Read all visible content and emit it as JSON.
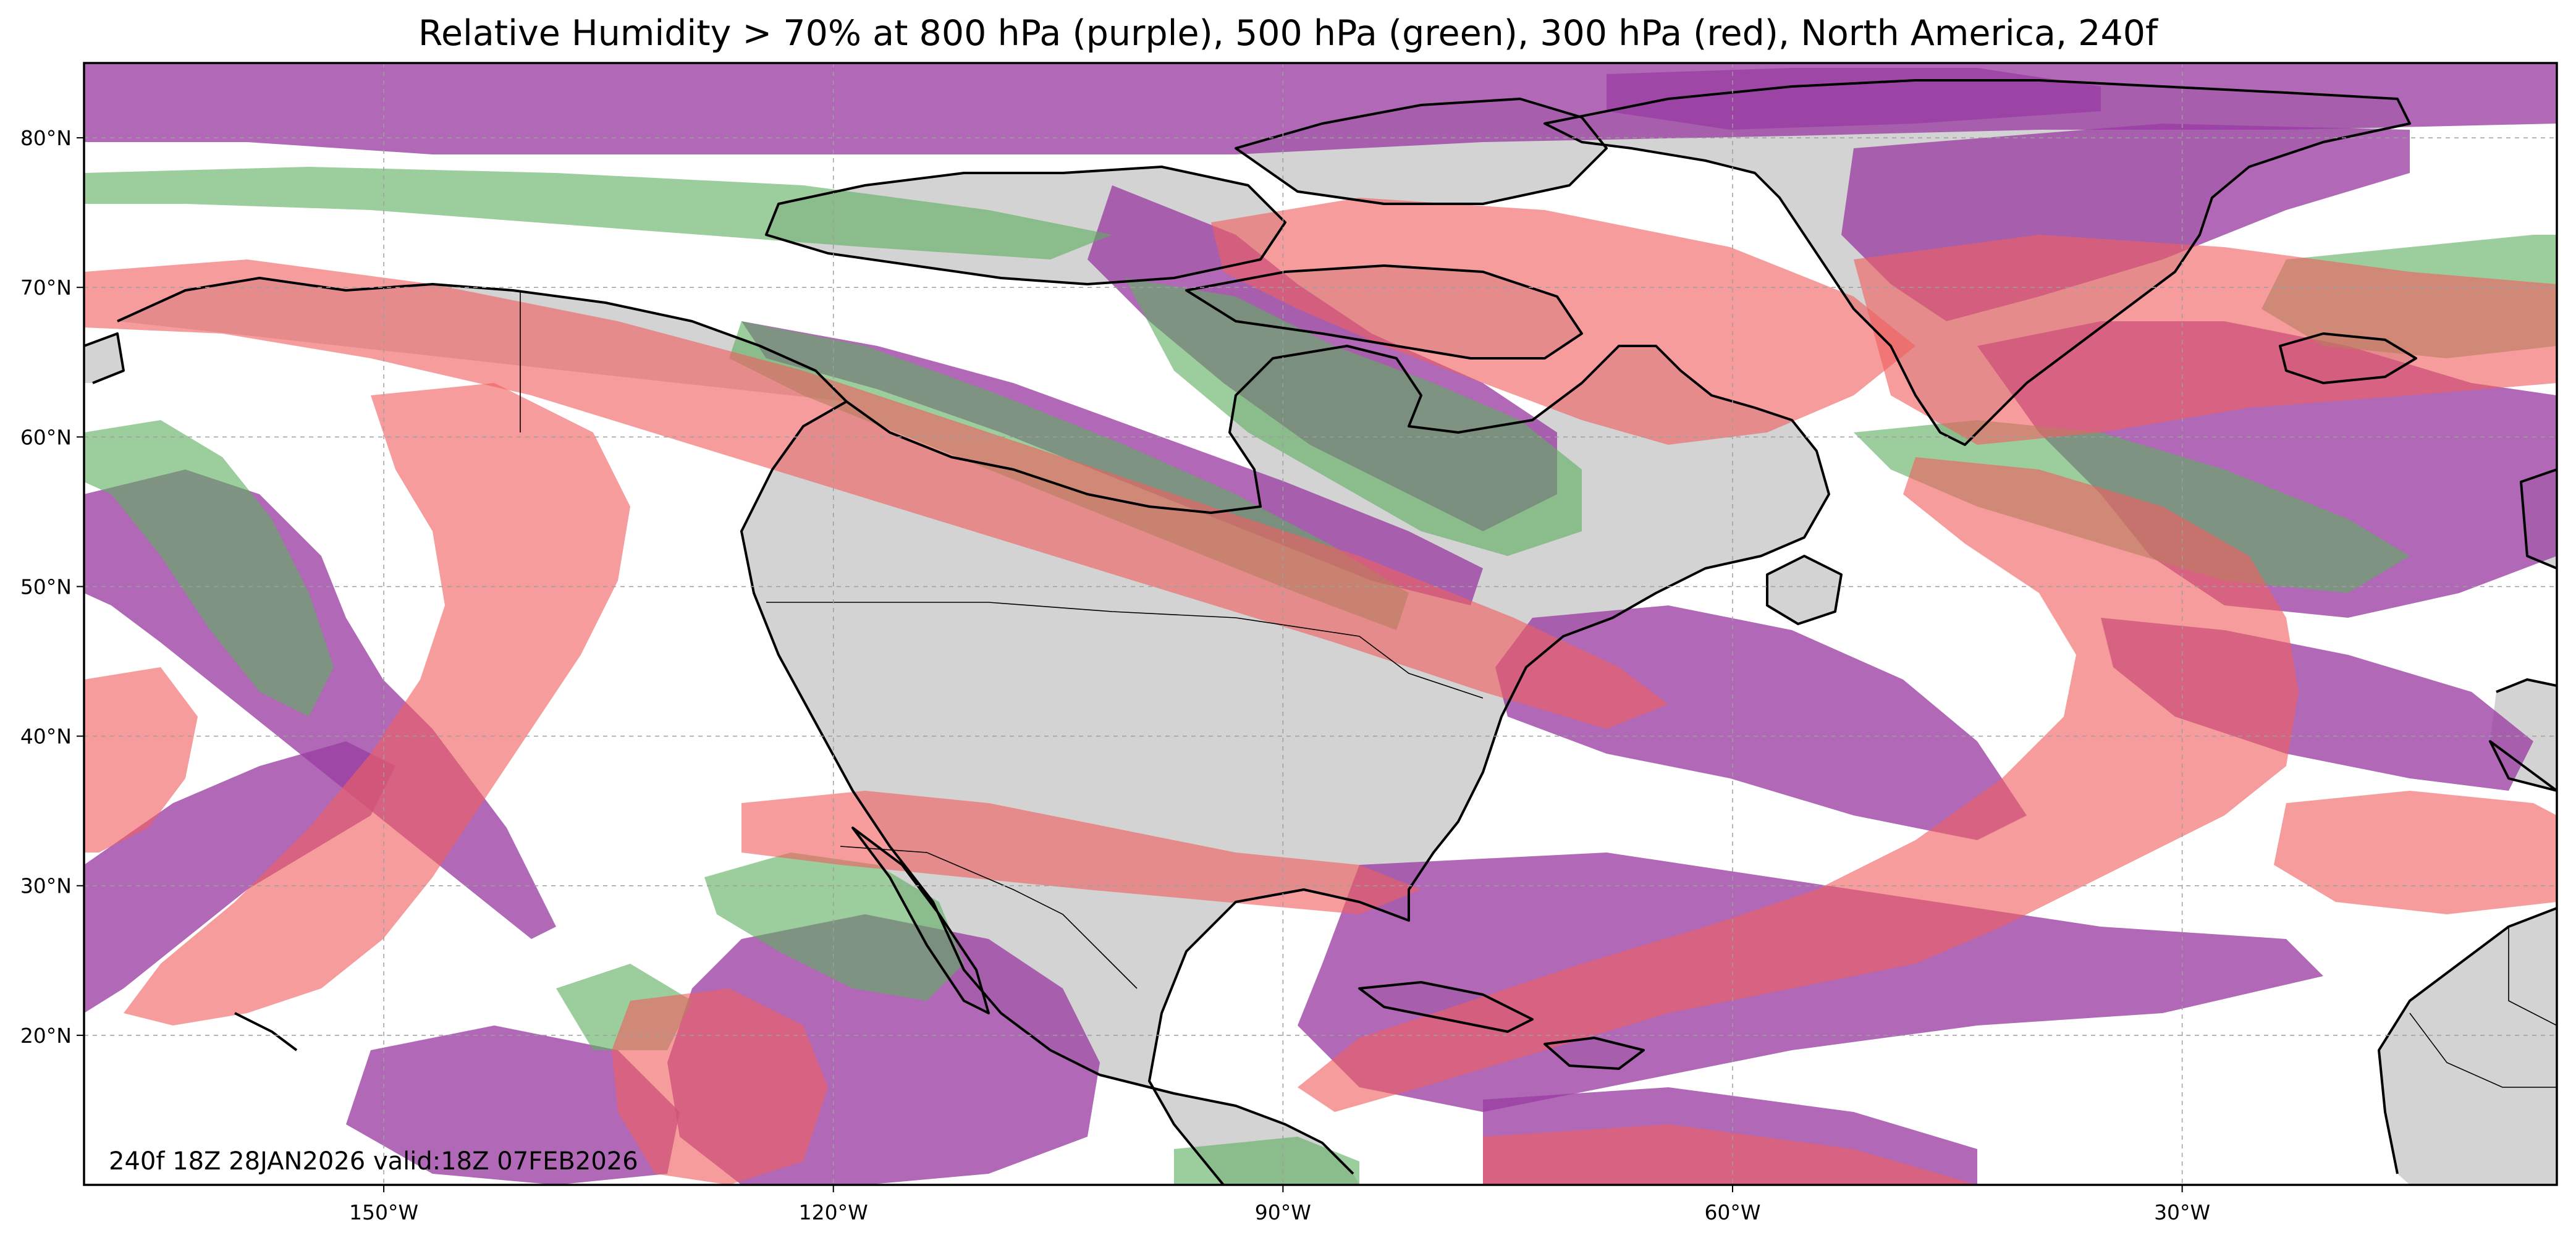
{
  "title": "Relative Humidity > 70% at 800 hPa (purple), 500 hPa (green), 300 hPa (red), North America, 240f",
  "stamp": "240f 18Z 28JAN2026 valid:18Z 07FEB2026",
  "map": {
    "region": "North America",
    "projection": "PlateCarree",
    "lon_range": [
      -170,
      -5
    ],
    "lat_range": [
      10,
      85
    ],
    "gridlines": true,
    "lon_ticks": [
      {
        "lon": -150,
        "label": "150°W"
      },
      {
        "lon": -120,
        "label": "120°W"
      },
      {
        "lon": -90,
        "label": "90°W"
      },
      {
        "lon": -60,
        "label": "60°W"
      },
      {
        "lon": -30,
        "label": "30°W"
      }
    ],
    "lat_ticks": [
      {
        "lat": 20,
        "label": "20°N"
      },
      {
        "lat": 30,
        "label": "30°N"
      },
      {
        "lat": 40,
        "label": "40°N"
      },
      {
        "lat": 50,
        "label": "50°N"
      },
      {
        "lat": 60,
        "label": "60°N"
      },
      {
        "lat": 70,
        "label": "70°N"
      },
      {
        "lat": 80,
        "label": "80°N"
      }
    ]
  },
  "layers": [
    {
      "level": "800 hPa",
      "color": "#9a3da3"
    },
    {
      "level": "500 hPa",
      "color": "#5fae5f"
    },
    {
      "level": "300 hPa",
      "color": "#f06060"
    }
  ],
  "land_color": "#d3d3d3",
  "coast_color": "#000000"
}
